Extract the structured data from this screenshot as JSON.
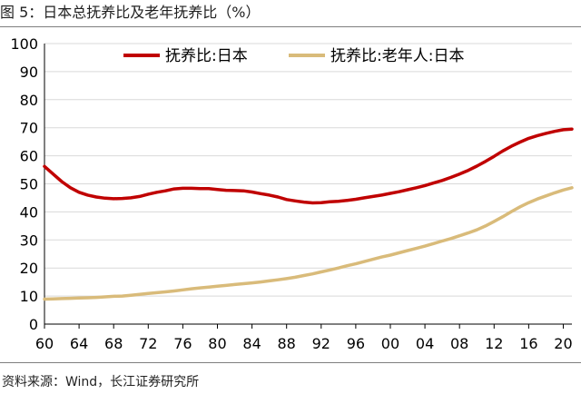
{
  "figure": {
    "title": "图 5：日本总抚养比及老年抚养比（%）",
    "source": "资料来源：Wind，长江证券研究所"
  },
  "chart_data": {
    "type": "line",
    "title": "",
    "xlabel": "",
    "ylabel": "",
    "x": [
      1960,
      1961,
      1962,
      1963,
      1964,
      1965,
      1966,
      1967,
      1968,
      1969,
      1970,
      1971,
      1972,
      1973,
      1974,
      1975,
      1976,
      1977,
      1978,
      1979,
      1980,
      1981,
      1982,
      1983,
      1984,
      1985,
      1986,
      1987,
      1988,
      1989,
      1990,
      1991,
      1992,
      1993,
      1994,
      1995,
      1996,
      1997,
      1998,
      1999,
      2000,
      2001,
      2002,
      2003,
      2004,
      2005,
      2006,
      2007,
      2008,
      2009,
      2010,
      2011,
      2012,
      2013,
      2014,
      2015,
      2016,
      2017,
      2018,
      2019,
      2020,
      2021
    ],
    "xlim": [
      1960,
      2021
    ],
    "xticks": [
      1960,
      1964,
      1968,
      1972,
      1976,
      1980,
      1984,
      1988,
      1992,
      1996,
      2000,
      2004,
      2008,
      2012,
      2016,
      2020
    ],
    "xtick_labels": [
      "60",
      "64",
      "68",
      "72",
      "76",
      "80",
      "84",
      "88",
      "92",
      "96",
      "00",
      "04",
      "08",
      "12",
      "16",
      "20"
    ],
    "ylim": [
      0,
      100
    ],
    "yticks": [
      0,
      10,
      20,
      30,
      40,
      50,
      60,
      70,
      80,
      90,
      100
    ],
    "grid": "horizontal",
    "legend_position": "top",
    "series": [
      {
        "name": "抚养比:日本",
        "color": "#c00000",
        "values": [
          56.2,
          53.5,
          50.8,
          48.6,
          47.0,
          46.0,
          45.3,
          44.9,
          44.7,
          44.8,
          45.0,
          45.5,
          46.3,
          47.0,
          47.5,
          48.2,
          48.4,
          48.4,
          48.3,
          48.3,
          48.0,
          47.7,
          47.6,
          47.5,
          47.1,
          46.5,
          46.0,
          45.3,
          44.4,
          43.9,
          43.5,
          43.2,
          43.3,
          43.6,
          43.8,
          44.1,
          44.5,
          45.0,
          45.5,
          46.0,
          46.6,
          47.2,
          47.9,
          48.6,
          49.4,
          50.3,
          51.2,
          52.3,
          53.5,
          54.8,
          56.3,
          58.0,
          59.8,
          61.7,
          63.4,
          64.9,
          66.2,
          67.2,
          68.0,
          68.7,
          69.3,
          69.5
        ]
      },
      {
        "name": "抚养比:老年人:日本",
        "color": "#d9bb7a",
        "values": [
          8.9,
          9.0,
          9.1,
          9.2,
          9.3,
          9.4,
          9.5,
          9.7,
          9.9,
          10.0,
          10.3,
          10.6,
          10.9,
          11.2,
          11.5,
          11.8,
          12.2,
          12.6,
          12.9,
          13.2,
          13.5,
          13.8,
          14.1,
          14.4,
          14.7,
          15.0,
          15.4,
          15.8,
          16.2,
          16.7,
          17.3,
          17.9,
          18.6,
          19.3,
          20.0,
          20.8,
          21.5,
          22.3,
          23.1,
          23.9,
          24.6,
          25.4,
          26.2,
          27.0,
          27.8,
          28.7,
          29.6,
          30.5,
          31.5,
          32.5,
          33.6,
          35.0,
          36.6,
          38.3,
          40.1,
          41.8,
          43.3,
          44.6,
          45.7,
          46.8,
          47.8,
          48.6
        ]
      }
    ]
  }
}
